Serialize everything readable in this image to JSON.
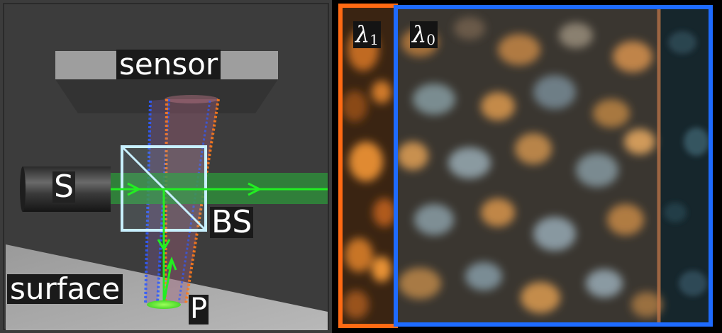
{
  "labels": {
    "sensor": "sensor",
    "source": "S",
    "beam_splitter": "BS",
    "surface": "surface",
    "point": "P"
  },
  "wavelengths": {
    "lambda1": {
      "symbol": "λ",
      "subscript": "1"
    },
    "lambda0": {
      "symbol": "λ",
      "subscript": "0"
    }
  },
  "colors": {
    "laser": "#22ee22",
    "beam_band": "#2e8b3a",
    "beam_splitter": "#c8f0ff",
    "lambda1_box": "#ff6a13",
    "lambda0_box": "#1e6bff",
    "background": "#3c3c3c"
  }
}
